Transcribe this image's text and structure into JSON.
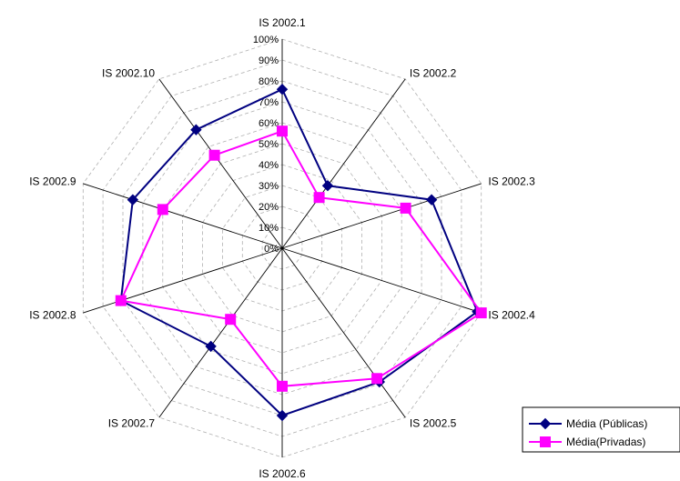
{
  "chart_data": {
    "type": "radar",
    "categories": [
      "IS 2002.1",
      "IS 2002.2",
      "IS 2002.3",
      "IS 2002.4",
      "IS 2002.5",
      "IS 2002.6",
      "IS 2002.7",
      "IS 2002.8",
      "IS 2002.9",
      "IS 2002.10"
    ],
    "ticks": [
      "0%",
      "10%",
      "20%",
      "30%",
      "40%",
      "50%",
      "60%",
      "70%",
      "80%",
      "90%",
      "100%"
    ],
    "rlim": [
      0,
      100
    ],
    "grid": true,
    "legend": "bottom-right",
    "series": [
      {
        "name": "Média (Públicas)",
        "color": "#000080",
        "marker": "diamond",
        "values": [
          76,
          37,
          75,
          98,
          79,
          80,
          58,
          81,
          75,
          70
        ]
      },
      {
        "name": "Média(Privadas)",
        "color": "#ff00ff",
        "marker": "square",
        "values": [
          56,
          30,
          62,
          100,
          77,
          66,
          42,
          81,
          60,
          55
        ]
      }
    ]
  }
}
